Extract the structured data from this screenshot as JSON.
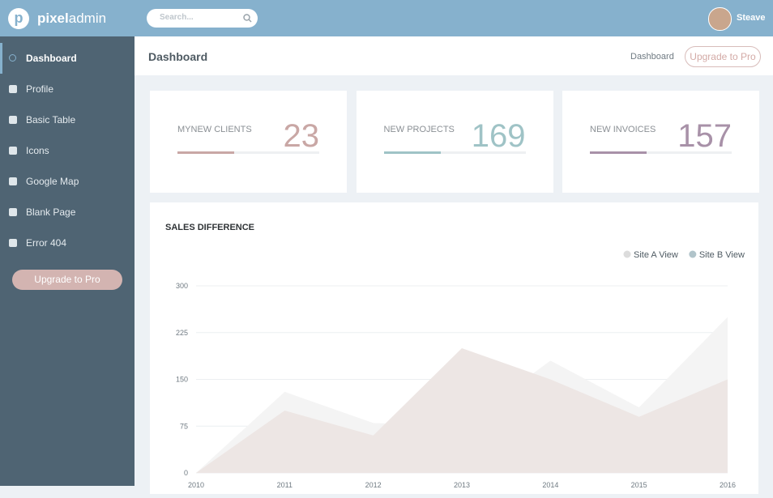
{
  "brand": {
    "logo_letter": "p",
    "name_bold": "pixel",
    "name_light": "admin"
  },
  "search": {
    "placeholder": "Search..."
  },
  "user": {
    "name": "Steave"
  },
  "sidebar": {
    "items": [
      "Dashboard",
      "Profile",
      "Basic Table",
      "Icons",
      "Google Map",
      "Blank Page",
      "Error 404"
    ],
    "button": "Upgrade to Pro"
  },
  "page_header": {
    "title": "Dashboard",
    "breadcrumb": "Dashboard",
    "button": "Upgrade to Pro"
  },
  "stats": [
    {
      "label": "MYNEW CLIENTS",
      "value": "23",
      "color": "#c9a7a5"
    },
    {
      "label": "NEW PROJECTS",
      "value": "169",
      "color": "#9fc3c6"
    },
    {
      "label": "NEW INVOICES",
      "value": "157",
      "color": "#a891a8"
    }
  ],
  "chart_data": {
    "type": "area",
    "title": "SALES DIFFERENCE",
    "categories": [
      "2010",
      "2011",
      "2012",
      "2013",
      "2014",
      "2015",
      "2016"
    ],
    "ylim": [
      0,
      300
    ],
    "yticks": [
      0,
      75,
      150,
      225,
      300
    ],
    "grid": true,
    "legend": "top-right",
    "series": [
      {
        "name": "Site A View",
        "color": "#f4f4f4",
        "legend_color": "#dcdcdc",
        "values": [
          0,
          130,
          80,
          75,
          180,
          105,
          250
        ]
      },
      {
        "name": "Site B View",
        "color": "#ede6e4",
        "legend_color": "#b1c4ca",
        "values": [
          0,
          100,
          60,
          200,
          150,
          90,
          150
        ]
      }
    ]
  }
}
